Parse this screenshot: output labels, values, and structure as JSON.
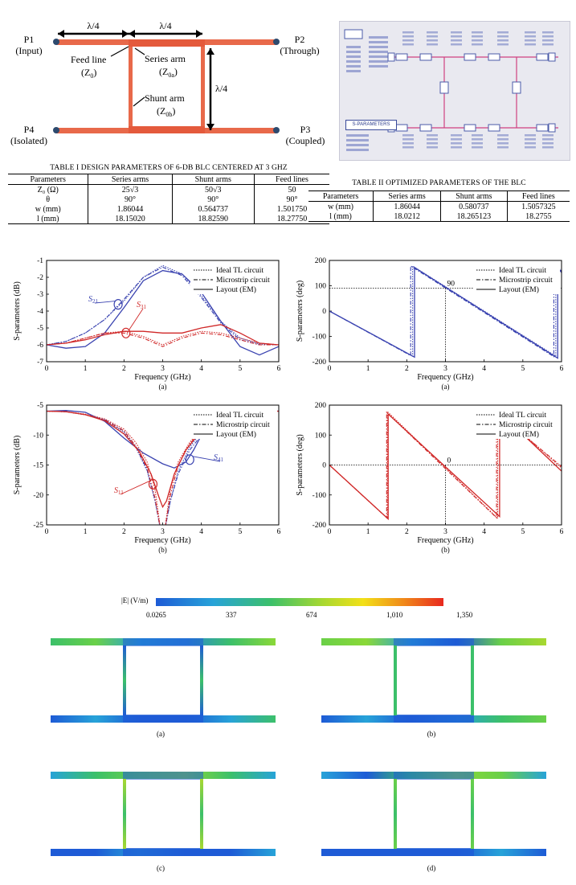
{
  "schematic": {
    "ports": [
      {
        "name": "P1",
        "role": "(Input)"
      },
      {
        "name": "P2",
        "role": "(Through)"
      },
      {
        "name": "P3",
        "role": "(Coupled)"
      },
      {
        "name": "P4",
        "role": "(Isolated)"
      }
    ],
    "lambda4": "λ/4",
    "feed_line": "Feed line",
    "feed_line_sym": "(Z",
    "series_arm": "Series arm",
    "shunt_arm": "Shunt arm",
    "sub0": "0",
    "sub0a": "0a",
    "sub0b": "0b",
    "close": ")",
    "colors": {
      "line": "#e8694a",
      "port": "#2d4a6e"
    }
  },
  "ads_screenshot": {
    "sparams_label": "S-PARAMETERS"
  },
  "table1": {
    "title": "TABLE I DESIGN PARAMETERS OF 6-DB BLC CENTERED AT 3 GHZ",
    "headers": [
      "Parameters",
      "Series arms",
      "Shunt arms",
      "Feed lines"
    ],
    "rows": [
      [
        "Z₀ (Ω)",
        "25√3",
        "50√3",
        "50"
      ],
      [
        "θ",
        "90°",
        "90°",
        "90°"
      ],
      [
        "w (mm)",
        "1.86044",
        "0.564737",
        "1.501750"
      ],
      [
        "l (mm)",
        "18.15020",
        "18.82590",
        "18.27750"
      ]
    ]
  },
  "table2": {
    "title": "TABLE II OPTIMIZED PARAMETERS OF THE BLC",
    "headers": [
      "Parameters",
      "Series arms",
      "Shunt arms",
      "Feed lines"
    ],
    "rows": [
      [
        "w (mm)",
        "1.86044",
        "0.580737",
        "1.5057325"
      ],
      [
        "l (mm)",
        "18.0212",
        "18.265123",
        "18.2755"
      ]
    ]
  },
  "legend": [
    "Ideal TL circuit",
    "Microstrip circuit",
    "Layout (EM)"
  ],
  "chart_data": [
    {
      "id": "mag_a",
      "type": "line",
      "caption": "(a)",
      "xlabel": "Frequency (GHz)",
      "ylabel": "S-parameters (dB)",
      "xlim": [
        0,
        6
      ],
      "ylim": [
        -7,
        -1
      ],
      "xticks": [
        0,
        1,
        2,
        3,
        4,
        5,
        6
      ],
      "yticks": [
        -7,
        -6,
        -5,
        -4,
        -3,
        -2,
        -1
      ],
      "annotations": [
        {
          "label": "S",
          "sub": "21",
          "color": "#3a43b0"
        },
        {
          "label": "S",
          "sub": "31",
          "color": "#d02828"
        }
      ],
      "series": [
        {
          "group": "S21",
          "style": "ideal",
          "color": "#3a43b0",
          "x": [
            0,
            0.5,
            1,
            1.5,
            2,
            2.5,
            3,
            3.5,
            4,
            4.5,
            5,
            5.5,
            6
          ],
          "y": [
            -6,
            -5.8,
            -5.3,
            -4.5,
            -3.4,
            -2,
            -1.3,
            -1.8,
            -3.1,
            -4.6,
            -5.6,
            -5.95,
            -6
          ]
        },
        {
          "group": "S21",
          "style": "microstrip",
          "color": "#3a43b0",
          "x": [
            0,
            0.5,
            1,
            1.5,
            2,
            2.5,
            3,
            3.5,
            4,
            4.5,
            5,
            5.5,
            6
          ],
          "y": [
            -6,
            -5.8,
            -5.3,
            -4.5,
            -3.3,
            -2,
            -1.4,
            -1.9,
            -3.2,
            -4.7,
            -5.7,
            -6,
            -6
          ]
        },
        {
          "group": "S21",
          "style": "em",
          "color": "#3a43b0",
          "x": [
            0,
            0.5,
            1,
            1.5,
            2,
            2.5,
            3,
            3.5,
            4,
            4.5,
            5,
            5.5,
            6
          ],
          "y": [
            -6,
            -6.2,
            -6.1,
            -5.3,
            -3.8,
            -2.2,
            -1.6,
            -1.8,
            -2.9,
            -4.6,
            -6.1,
            -6.6,
            -6.1
          ]
        },
        {
          "group": "S31",
          "style": "ideal",
          "color": "#d02828",
          "x": [
            0,
            0.5,
            1,
            1.5,
            2,
            2.5,
            3,
            3.5,
            4,
            4.5,
            5,
            5.5,
            6
          ],
          "y": [
            -6,
            -5.9,
            -5.6,
            -5.3,
            -5.2,
            -5.5,
            -6,
            -5.5,
            -5.2,
            -5.3,
            -5.6,
            -5.9,
            -6
          ]
        },
        {
          "group": "S31",
          "style": "microstrip",
          "color": "#d02828",
          "x": [
            0,
            0.5,
            1,
            1.5,
            2,
            2.5,
            3,
            3.5,
            4,
            4.5,
            5,
            5.5,
            6
          ],
          "y": [
            -6,
            -5.9,
            -5.6,
            -5.3,
            -5.3,
            -5.6,
            -6.1,
            -5.6,
            -5.3,
            -5.4,
            -5.7,
            -6,
            -6
          ]
        },
        {
          "group": "S31",
          "style": "em",
          "color": "#d02828",
          "x": [
            0,
            0.5,
            1,
            1.5,
            2,
            2.5,
            3,
            3.5,
            4,
            4.5,
            5,
            5.5,
            6
          ],
          "y": [
            -6,
            -5.9,
            -5.7,
            -5.4,
            -5.2,
            -5.2,
            -5.3,
            -5.3,
            -5,
            -4.8,
            -5.3,
            -5.9,
            -6
          ]
        }
      ]
    },
    {
      "id": "mag_b",
      "type": "line",
      "caption": "(b)",
      "xlabel": "Frequency (GHz)",
      "ylabel": "S-parameters (dB)",
      "xlim": [
        0,
        6
      ],
      "ylim": [
        -25,
        -5
      ],
      "xticks": [
        0,
        1,
        2,
        3,
        4,
        5,
        6
      ],
      "yticks": [
        -25,
        -20,
        -15,
        -10,
        -5
      ],
      "annotations": [
        {
          "label": "S",
          "sub": "41",
          "color": "#3a43b0"
        },
        {
          "label": "S",
          "sub": "11",
          "color": "#d02828"
        }
      ],
      "series": [
        {
          "group": "S41",
          "style": "ideal",
          "color": "#3a43b0",
          "x": [
            0,
            0.5,
            1,
            1.5,
            2,
            2.3,
            2.6,
            2.8,
            2.95,
            3.05,
            3.2,
            3.4,
            3.7,
            4,
            4.5,
            5,
            5.5,
            6
          ],
          "y": [
            -6,
            -6.1,
            -6.6,
            -7.5,
            -9.5,
            -12,
            -16,
            -21,
            -26,
            -26,
            -21,
            -16,
            -12,
            -9.5,
            -7.5,
            -6.6,
            -6.1,
            -6
          ]
        },
        {
          "group": "S41",
          "style": "microstrip",
          "color": "#3a43b0",
          "x": [
            0,
            0.5,
            1,
            1.5,
            2,
            2.3,
            2.6,
            2.8,
            2.95,
            3.05,
            3.2,
            3.4,
            3.7,
            4,
            4.5,
            5,
            5.5,
            6
          ],
          "y": [
            -6,
            -6.1,
            -6.6,
            -7.4,
            -9.3,
            -11.8,
            -15.8,
            -20.8,
            -26,
            -26,
            -21,
            -16.5,
            -12.5,
            -10,
            -7.8,
            -6.8,
            -6.2,
            -6
          ]
        },
        {
          "group": "S41",
          "style": "em",
          "color": "#3a43b0",
          "x": [
            0,
            0.5,
            1,
            1.5,
            2,
            2.5,
            3,
            3.3,
            3.6,
            3.8,
            4,
            4.5,
            5,
            5.5,
            6
          ],
          "y": [
            -6,
            -5.9,
            -6.2,
            -7.7,
            -10.5,
            -13,
            -14.8,
            -15.5,
            -14.5,
            -12.5,
            -10,
            -7.3,
            -6.2,
            -5.9,
            -6
          ]
        },
        {
          "group": "S11",
          "style": "ideal",
          "color": "#d02828",
          "x": [
            0,
            0.5,
            1,
            1.5,
            2,
            2.3,
            2.6,
            2.8,
            2.95,
            3.05,
            3.2,
            3.4,
            3.7,
            4,
            4.5,
            5,
            5.5,
            6
          ],
          "y": [
            -6,
            -6.1,
            -6.5,
            -7.3,
            -9,
            -11.2,
            -14.5,
            -19,
            -26,
            -26,
            -19,
            -14.5,
            -11.2,
            -9,
            -7.3,
            -6.5,
            -6.1,
            -6
          ]
        },
        {
          "group": "S11",
          "style": "microstrip",
          "color": "#d02828",
          "x": [
            0,
            0.5,
            1,
            1.5,
            2,
            2.3,
            2.6,
            2.8,
            2.95,
            3.05,
            3.2,
            3.4,
            3.7,
            4,
            4.5,
            5,
            5.5,
            6
          ],
          "y": [
            -6,
            -6.1,
            -6.6,
            -7.5,
            -9.3,
            -11.8,
            -15.5,
            -20.5,
            -26,
            -26,
            -20,
            -15,
            -11.5,
            -9.2,
            -7.4,
            -6.6,
            -6.1,
            -6
          ]
        },
        {
          "group": "S11",
          "style": "em",
          "color": "#d02828",
          "x": [
            0,
            0.5,
            1,
            1.5,
            2,
            2.4,
            2.7,
            2.9,
            3,
            3.1,
            3.3,
            3.6,
            4,
            4.5,
            5,
            5.5,
            6
          ],
          "y": [
            -6,
            -6.1,
            -6.6,
            -7.6,
            -9.8,
            -12.8,
            -16.5,
            -20.3,
            -22,
            -21,
            -16.5,
            -12.5,
            -9.2,
            -7.2,
            -6.3,
            -6,
            -6
          ]
        }
      ]
    },
    {
      "id": "phase_a",
      "type": "line",
      "caption": "(a)",
      "xlabel": "Frequency (GHz)",
      "ylabel": "S-parameters (deg)",
      "xlim": [
        0,
        6
      ],
      "ylim": [
        -200,
        200
      ],
      "xticks": [
        0,
        1,
        2,
        3,
        4,
        5,
        6
      ],
      "yticks": [
        -200,
        -100,
        0,
        100,
        200
      ],
      "ref_label": "90",
      "ref_y": 90,
      "ref_x": 3,
      "series": [
        {
          "style": "ideal",
          "color": "#3a43b0",
          "x": [
            0,
            2.15,
            2.15,
            5.85,
            5.85,
            6
          ],
          "y": [
            0,
            -178,
            178,
            -178,
            178,
            160
          ]
        },
        {
          "style": "microstrip",
          "color": "#3a43b0",
          "x": [
            0,
            2.1,
            2.1,
            5.8,
            5.8,
            6
          ],
          "y": [
            0,
            -176,
            178,
            -180,
            178,
            158
          ]
        },
        {
          "style": "em",
          "color": "#3a43b0",
          "x": [
            0,
            2.2,
            2.2,
            5.9,
            5.9,
            6
          ],
          "y": [
            0,
            -182,
            172,
            -186,
            172,
            152
          ]
        }
      ]
    },
    {
      "id": "phase_b",
      "type": "line",
      "caption": "(b)",
      "xlabel": "Frequency (GHz)",
      "ylabel": "S-parameters (deg)",
      "xlim": [
        0,
        6
      ],
      "ylim": [
        -200,
        200
      ],
      "xticks": [
        0,
        1,
        2,
        3,
        4,
        5,
        6
      ],
      "yticks": [
        -200,
        -100,
        0,
        100,
        200
      ],
      "ref_label": "0",
      "ref_y": 0,
      "ref_x": 3,
      "series": [
        {
          "style": "ideal",
          "color": "#d02828",
          "x": [
            0,
            1.5,
            1.5,
            4.35,
            4.35,
            6
          ],
          "y": [
            0,
            -178,
            178,
            -178,
            178,
            -10
          ]
        },
        {
          "style": "microstrip",
          "color": "#d02828",
          "x": [
            0,
            1.48,
            1.48,
            4.32,
            4.32,
            6
          ],
          "y": [
            0,
            -176,
            176,
            -176,
            176,
            -5
          ]
        },
        {
          "style": "em",
          "color": "#d02828",
          "x": [
            0,
            1.52,
            1.52,
            4.4,
            4.4,
            6
          ],
          "y": [
            0,
            -180,
            170,
            -172,
            176,
            -20
          ]
        }
      ]
    }
  ],
  "field_maps": {
    "colorbar_label": "|E| (V/m)",
    "ticks": [
      "0.0265",
      "337",
      "674",
      "1,010",
      "1,350"
    ],
    "captions": [
      "(a)",
      "(b)",
      "(c)",
      "(d)"
    ],
    "colors": {
      "low": "#1e5bd6",
      "mid": "#3cc06a",
      "high": "#e8281e"
    }
  }
}
